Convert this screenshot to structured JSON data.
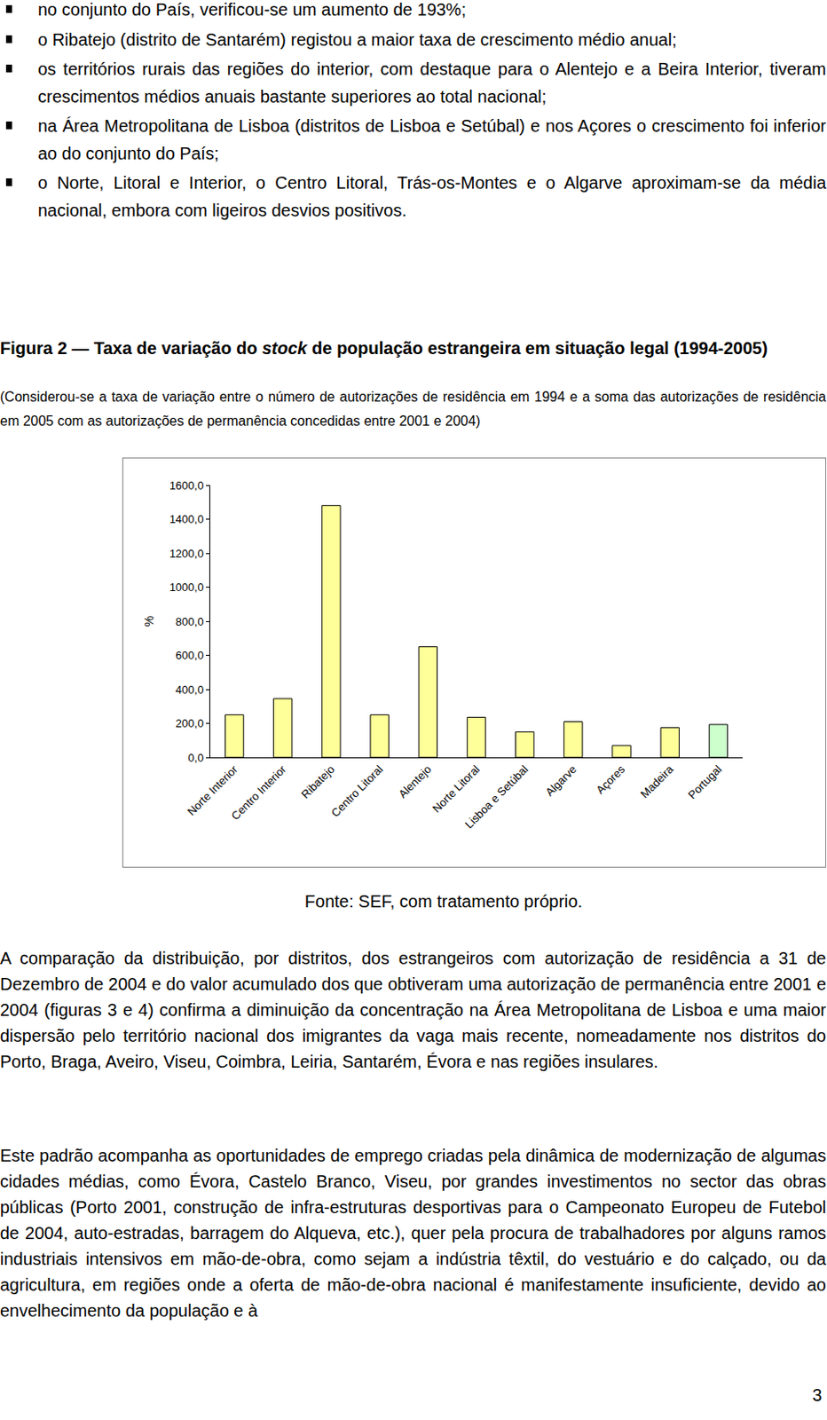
{
  "document": {
    "bullets": [
      "no conjunto do País, verificou-se um aumento de 193%;",
      "o Ribatejo (distrito de Santarém) registou a maior taxa de crescimento médio anual;",
      "os territórios rurais das regiões do interior, com destaque para o Alentejo e a Beira Interior, tiveram crescimentos médios anuais bastante superiores ao total nacional;",
      "na Área Metropolitana de Lisboa (distritos de Lisboa e Setúbal) e nos Açores o crescimento foi inferior ao do conjunto do País;",
      "o Norte, Litoral e Interior, o Centro Litoral, Trás-os-Montes e o Algarve aproximam-se da média nacional, embora com ligeiros desvios positivos."
    ],
    "figure": {
      "title": {
        "before": "Figura 2 — Taxa de variação do ",
        "italic": "stock",
        "after": " de população estrangeira em situação legal (1994-2005)"
      },
      "caption": "(Considerou-se a taxa de variação entre o número de autorizações de residência em 1994 e a soma das autorizações de residência em 2005 com as autorizações de permanência concedidas entre 2001 e 2004)",
      "source": "Fonte: SEF, com tratamento próprio."
    },
    "paragraphs": [
      "A comparação da distribuição, por distritos, dos estrangeiros com autorização de residência a 31 de Dezembro de 2004 e do valor acumulado dos que obtiveram uma autorização de permanência entre 2001 e 2004 (figuras 3 e 4) confirma a diminuição da concentração na Área Metropolitana de Lisboa e uma maior dispersão pelo território nacional dos imigrantes da vaga mais recente, nomeadamente nos distritos do Porto, Braga, Aveiro, Viseu, Coimbra, Leiria, Santarém, Évora e nas regiões insulares.",
      "Este padrão acompanha as oportunidades de emprego criadas pela dinâmica de modernização de algumas cidades médias, como Évora, Castelo Branco, Viseu, por grandes investimentos no sector das obras públicas (Porto 2001, construção de infra-estruturas desportivas para o Campeonato Europeu de Futebol de 2004, auto-estradas, barragem do Alqueva, etc.), quer pela procura de trabalhadores por alguns ramos industriais intensivos em mão-de-obra, como sejam a indústria têxtil, do vestuário e do calçado, ou da agricultura, em regiões onde a oferta de mão-de-obra nacional é manifestamente insuficiente, devido ao envelhecimento da população e à"
    ],
    "page_number": "3"
  },
  "chart_data": {
    "type": "bar",
    "y_label": "%",
    "categories": [
      "Norte Interior",
      "Centro Interior",
      "Ribatejo",
      "Centro Litoral",
      "Alentejo",
      "Norte Litoral",
      "Lisboa e Setúbal",
      "Algarve",
      "Açores",
      "Madeira",
      "Portugal"
    ],
    "values": [
      250,
      345,
      1480,
      250,
      650,
      235,
      150,
      210,
      70,
      175,
      193
    ],
    "colors": [
      "#ffff99",
      "#ffff99",
      "#ffff99",
      "#ffff99",
      "#ffff99",
      "#ffff99",
      "#ffff99",
      "#ffff99",
      "#ffff99",
      "#ffff99",
      "#ccffcc"
    ],
    "ylim": [
      0,
      1600
    ],
    "yticks": [
      {
        "value": 0,
        "label": "0,0"
      },
      {
        "value": 200,
        "label": "200,0"
      },
      {
        "value": 400,
        "label": "400,0"
      },
      {
        "value": 600,
        "label": "600,0"
      },
      {
        "value": 800,
        "label": "800,0"
      },
      {
        "value": 1000,
        "label": "1000,0"
      },
      {
        "value": 1200,
        "label": "1200,0"
      },
      {
        "value": 1400,
        "label": "1400,0"
      },
      {
        "value": 1600,
        "label": "1600,0"
      }
    ],
    "grid": false
  }
}
